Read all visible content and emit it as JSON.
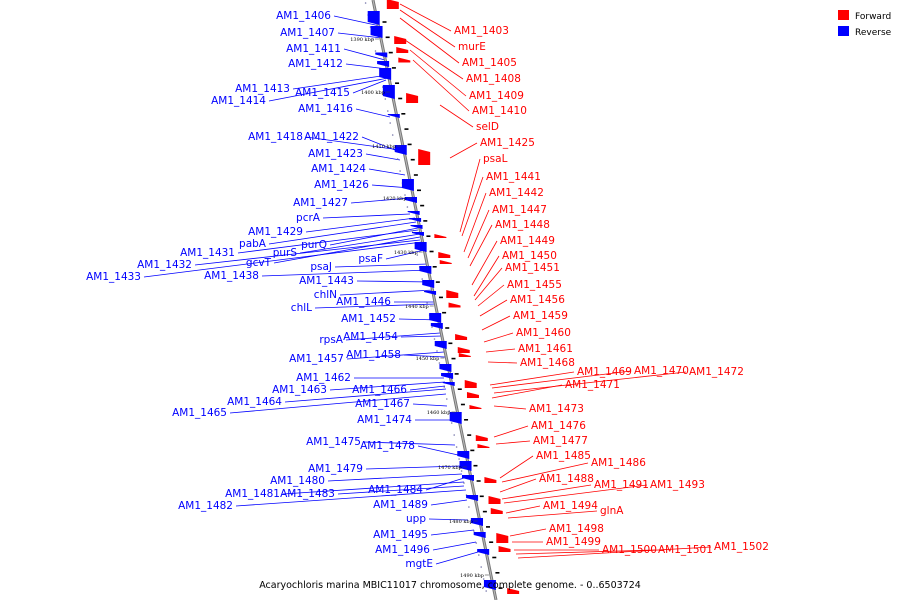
{
  "chart_data": {
    "type": "genome-map",
    "caption": "Acaryochloris marina MBIC11017 chromosome, complete genome. - 0..6503724",
    "legend": [
      {
        "label": "Forward",
        "color": "#ff0000"
      },
      {
        "label": "Reverse",
        "color": "#0000ff"
      }
    ],
    "ticks": [
      "1390 kbp",
      "1400 kbp",
      "1410 kbp",
      "1420 kbp",
      "1430 kbp",
      "1440 kbp",
      "1450 kbp",
      "1460 kbp",
      "1470 kbp",
      "1480 kbp",
      "1490 kbp"
    ],
    "reverse_genes": [
      "AM1_1406",
      "AM1_1407",
      "AM1_1411",
      "AM1_1412",
      "AM1_1413",
      "AM1_1414",
      "AM1_1415",
      "AM1_1416",
      "AM1_1418",
      "AM1_1422",
      "AM1_1423",
      "AM1_1424",
      "AM1_1426",
      "AM1_1427",
      "pcrA",
      "AM1_1429",
      "pabA",
      "purQ",
      "AM1_1431",
      "purS",
      "gcvT",
      "AM1_1432",
      "AM1_1433",
      "psaF",
      "psaJ",
      "AM1_1438",
      "AM1_1443",
      "chlN",
      "AM1_1446",
      "chlL",
      "AM1_1452",
      "rpsA",
      "AM1_1454",
      "AM1_1457",
      "AM1_1458",
      "AM1_1462",
      "AM1_1463",
      "AM1_1466",
      "AM1_1464",
      "AM1_1465",
      "AM1_1467",
      "AM1_1474",
      "AM1_1475",
      "AM1_1478",
      "AM1_1479",
      "AM1_1480",
      "AM1_1484",
      "AM1_1481",
      "AM1_1483",
      "AM1_1482",
      "AM1_1489",
      "upp",
      "AM1_1495",
      "AM1_1496",
      "mgtE"
    ],
    "forward_genes": [
      "AM1_1403",
      "murE",
      "AM1_1405",
      "AM1_1408",
      "AM1_1409",
      "AM1_1410",
      "selD",
      "AM1_1425",
      "psaL",
      "AM1_1441",
      "AM1_1442",
      "AM1_1447",
      "AM1_1448",
      "AM1_1449",
      "AM1_1450",
      "AM1_1451",
      "AM1_1455",
      "AM1_1456",
      "AM1_1459",
      "AM1_1460",
      "AM1_1461",
      "AM1_1468",
      "AM1_1469",
      "AM1_1470",
      "AM1_1472",
      "AM1_1471",
      "AM1_1473",
      "AM1_1476",
      "AM1_1477",
      "AM1_1485",
      "AM1_1486",
      "AM1_1488",
      "AM1_1491",
      "AM1_1493",
      "AM1_1494",
      "glnA",
      "AM1_1498",
      "AM1_1499",
      "AM1_1500",
      "AM1_1501",
      "AM1_1502"
    ]
  }
}
